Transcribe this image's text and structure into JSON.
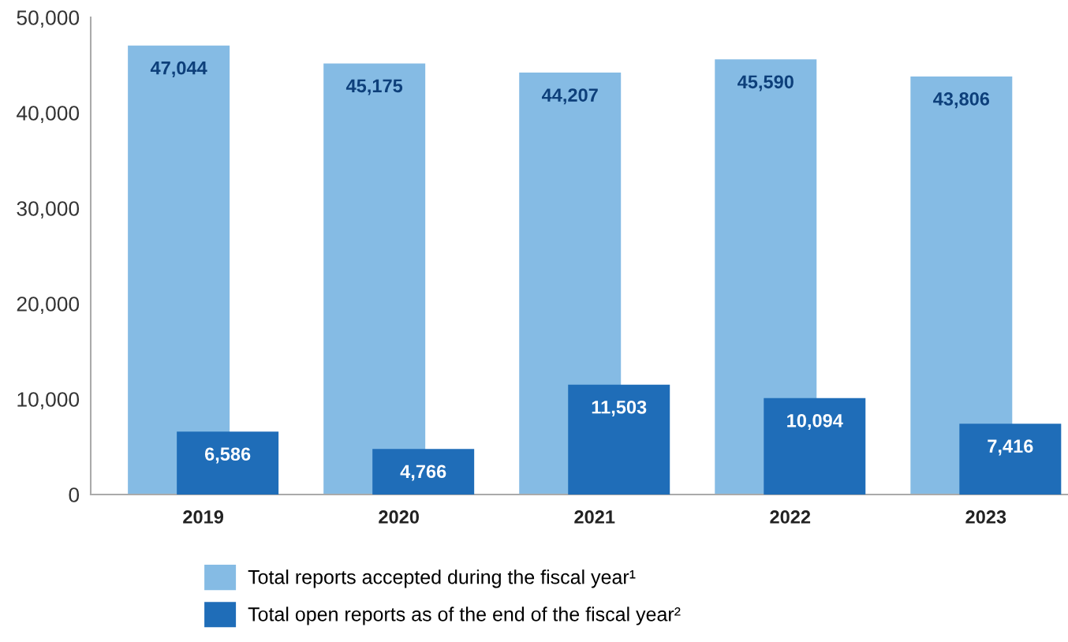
{
  "chart_data": {
    "type": "bar",
    "categories": [
      "2019",
      "2020",
      "2021",
      "2022",
      "2023"
    ],
    "series": [
      {
        "name": "Total reports accepted during the fiscal year¹",
        "color": "#85bbe4",
        "values": [
          47044,
          45175,
          44207,
          45590,
          43806
        ],
        "value_labels": [
          "47,044",
          "45,175",
          "44,207",
          "45,590",
          "43,806"
        ]
      },
      {
        "name": "Total open reports as of the end of the fiscal year²",
        "color": "#1f6db8",
        "values": [
          6586,
          4766,
          11503,
          10094,
          7416
        ],
        "value_labels": [
          "6,586",
          "4,766",
          "11,503",
          "10,094",
          "7,416"
        ]
      }
    ],
    "ylim": [
      0,
      50000
    ],
    "yticks": [
      {
        "value": 0,
        "label": "0"
      },
      {
        "value": 10000,
        "label": "10,000"
      },
      {
        "value": 20000,
        "label": "20,000"
      },
      {
        "value": 30000,
        "label": "30,000"
      },
      {
        "value": 40000,
        "label": "40,000"
      },
      {
        "value": 50000,
        "label": "50,000"
      }
    ],
    "grid": false,
    "legend": "bottom"
  }
}
